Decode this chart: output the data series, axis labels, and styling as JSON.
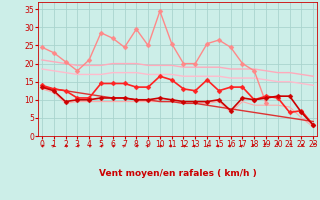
{
  "title": "Vent moyen/en rafales ( km/h )",
  "bg_color": "#cceee8",
  "grid_color": "#aad4ce",
  "x_values": [
    0,
    1,
    2,
    3,
    4,
    5,
    6,
    7,
    8,
    9,
    10,
    11,
    12,
    13,
    14,
    15,
    16,
    17,
    18,
    19,
    20,
    21,
    22,
    23
  ],
  "series": [
    {
      "name": "rafales_upper",
      "data": [
        24.5,
        23.0,
        20.5,
        18.0,
        21.0,
        28.5,
        27.0,
        24.5,
        29.5,
        25.0,
        34.5,
        25.5,
        20.0,
        20.0,
        25.5,
        26.5,
        24.5,
        20.0,
        18.0,
        9.0,
        null,
        null,
        null,
        null
      ],
      "color": "#ff8888",
      "lw": 1.0,
      "marker": "D",
      "ms": 2.5,
      "zorder": 3
    },
    {
      "name": "rafales_band_upper",
      "data": [
        21.0,
        20.5,
        20.0,
        19.5,
        19.5,
        19.5,
        20.0,
        20.0,
        20.0,
        19.5,
        19.5,
        19.5,
        19.0,
        19.0,
        19.0,
        19.0,
        18.5,
        18.5,
        18.5,
        18.0,
        17.5,
        17.5,
        17.0,
        16.5
      ],
      "color": "#ffaabb",
      "lw": 1.0,
      "marker": null,
      "ms": 0,
      "zorder": 2
    },
    {
      "name": "rafales_band_lower",
      "data": [
        18.5,
        18.0,
        17.5,
        17.0,
        17.0,
        17.0,
        17.5,
        17.5,
        17.5,
        17.0,
        17.0,
        17.0,
        16.5,
        16.5,
        16.5,
        16.5,
        16.0,
        16.0,
        16.0,
        15.5,
        15.0,
        15.0,
        14.5,
        14.0
      ],
      "color": "#ffbbcc",
      "lw": 1.0,
      "marker": null,
      "ms": 0,
      "zorder": 2
    },
    {
      "name": "moyen_red",
      "data": [
        14.0,
        13.0,
        12.5,
        10.5,
        10.5,
        14.5,
        14.5,
        14.5,
        13.5,
        13.5,
        16.5,
        15.5,
        13.0,
        12.5,
        15.5,
        12.5,
        13.5,
        13.5,
        10.0,
        11.0,
        10.5,
        6.5,
        7.0,
        3.0
      ],
      "color": "#ff2222",
      "lw": 1.2,
      "marker": "D",
      "ms": 2.5,
      "zorder": 4
    },
    {
      "name": "moyen_dark",
      "data": [
        13.5,
        12.5,
        9.5,
        10.0,
        10.0,
        10.5,
        10.5,
        10.5,
        10.0,
        10.0,
        10.5,
        10.0,
        9.5,
        9.5,
        9.5,
        10.0,
        7.0,
        10.5,
        10.0,
        10.5,
        11.0,
        11.0,
        6.5,
        3.0
      ],
      "color": "#cc0000",
      "lw": 1.2,
      "marker": "D",
      "ms": 2.5,
      "zorder": 4
    },
    {
      "name": "moyen_lower_band",
      "data": [
        13.0,
        12.0,
        9.0,
        9.5,
        9.5,
        9.5,
        9.5,
        9.5,
        9.5,
        9.5,
        9.5,
        9.5,
        9.0,
        9.0,
        9.0,
        9.5,
        6.5,
        9.5,
        8.5,
        8.5,
        8.5,
        8.0,
        5.0,
        2.5
      ],
      "color": "#ffaaaa",
      "lw": 0.8,
      "marker": null,
      "ms": 0,
      "zorder": 2
    },
    {
      "name": "declining_line",
      "data": [
        13.5,
        13.0,
        12.5,
        12.0,
        11.5,
        11.0,
        10.5,
        10.5,
        10.0,
        10.0,
        9.5,
        9.5,
        9.0,
        9.0,
        8.5,
        8.0,
        7.5,
        7.0,
        6.5,
        6.0,
        5.5,
        5.0,
        4.5,
        4.0
      ],
      "color": "#dd3333",
      "lw": 1.0,
      "marker": null,
      "ms": 0,
      "zorder": 3
    }
  ],
  "ylim": [
    0,
    37
  ],
  "yticks": [
    0,
    5,
    10,
    15,
    20,
    25,
    30,
    35
  ],
  "xlim": [
    -0.3,
    23.3
  ],
  "xticks": [
    0,
    1,
    2,
    3,
    4,
    5,
    6,
    7,
    8,
    9,
    10,
    11,
    12,
    13,
    14,
    15,
    16,
    17,
    18,
    19,
    20,
    21,
    22,
    23
  ],
  "arrow_color": "#cc0000",
  "tick_color": "#cc0000",
  "label_color": "#cc0000",
  "font_size": 5.5,
  "xlabel_fontsize": 6.5,
  "arrow_angles": [
    315,
    45,
    315,
    315,
    315,
    315,
    315,
    45,
    315,
    45,
    315,
    45,
    315,
    45,
    315,
    45,
    45,
    45,
    90,
    135,
    180,
    225,
    270,
    225
  ]
}
